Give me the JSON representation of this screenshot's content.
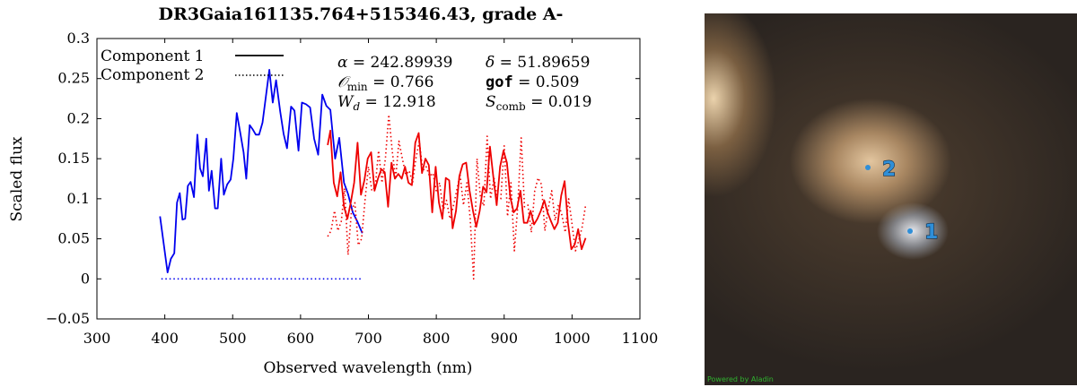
{
  "chart_data": {
    "type": "line",
    "title": "DR3Gaia161135.764+515346.43, grade A-",
    "xlabel": "Observed wavelength (nm)",
    "ylabel": "Scaled flux",
    "xlim": [
      300,
      1100
    ],
    "ylim": [
      -0.05,
      0.3
    ],
    "x_ticks": [
      "300",
      "400",
      "500",
      "600",
      "700",
      "800",
      "900",
      "1000",
      "1100"
    ],
    "y_ticks": [
      "−0.05",
      "0",
      "0.05",
      "0.1",
      "0.15",
      "0.2",
      "0.25",
      "0.3"
    ],
    "legend": {
      "placement": "top-left",
      "entries": [
        "Component 1",
        "Component 2"
      ]
    },
    "annotations": {
      "alpha": {
        "symbol": "α",
        "value": "= 242.89939"
      },
      "delta": {
        "symbol": "δ",
        "value": "= 51.89659"
      },
      "omin": {
        "symbol": "𝒪",
        "sub": "min",
        "value": "= 0.766"
      },
      "gof": {
        "symbol": "gof",
        "value": "= 0.509"
      },
      "wd": {
        "symbol": "W",
        "sub": "d",
        "value": "= 12.918"
      },
      "scomb": {
        "symbol": "S",
        "sub": "comb",
        "value": "= 0.019"
      }
    },
    "series": [
      {
        "name": "Component 1",
        "style": "solid",
        "color": "#0000ee",
        "x": [
          393,
          404,
          409,
          414,
          418,
          422,
          426,
          430,
          434,
          438,
          443,
          448,
          452,
          456,
          461,
          465,
          469,
          474,
          478,
          483,
          487,
          492,
          497,
          501,
          506,
          511,
          516,
          520,
          525,
          530,
          534,
          539,
          544,
          549,
          554,
          559,
          564,
          570,
          575,
          580,
          586,
          591,
          597,
          602,
          608,
          614,
          620,
          626,
          632,
          638,
          644,
          651,
          657,
          664,
          670,
          677,
          684,
          691
        ],
        "y": [
          0.078,
          0.008,
          0.025,
          0.032,
          0.095,
          0.107,
          0.074,
          0.075,
          0.116,
          0.121,
          0.102,
          0.18,
          0.138,
          0.128,
          0.175,
          0.11,
          0.135,
          0.088,
          0.088,
          0.15,
          0.105,
          0.118,
          0.124,
          0.15,
          0.207,
          0.183,
          0.158,
          0.125,
          0.192,
          0.186,
          0.18,
          0.18,
          0.195,
          0.228,
          0.261,
          0.22,
          0.248,
          0.209,
          0.181,
          0.163,
          0.215,
          0.21,
          0.16,
          0.22,
          0.218,
          0.214,
          0.175,
          0.155,
          0.23,
          0.216,
          0.211,
          0.15,
          0.176,
          0.12,
          0.106,
          0.083,
          0.071,
          0.057
        ]
      },
      {
        "name": "Component 1 (red part)",
        "style": "solid",
        "color": "#ee0000",
        "x": [
          640,
          644,
          649,
          654,
          659,
          664,
          669,
          674,
          679,
          684,
          689,
          694,
          699,
          704,
          709,
          714,
          719,
          724,
          729,
          734,
          739,
          744,
          749,
          754,
          759,
          764,
          769,
          774,
          779,
          784,
          789,
          794,
          799,
          804,
          809,
          814,
          819,
          824,
          829,
          834,
          839,
          844,
          849,
          854,
          859,
          864,
          869,
          874,
          879,
          884,
          889,
          894,
          899,
          904,
          909,
          914,
          919,
          924,
          929,
          934,
          939,
          944,
          949,
          954,
          959,
          964,
          969,
          974,
          979,
          984,
          989,
          994,
          999,
          1004,
          1009,
          1014,
          1020
        ],
        "y": [
          0.167,
          0.185,
          0.12,
          0.103,
          0.133,
          0.09,
          0.075,
          0.095,
          0.12,
          0.17,
          0.105,
          0.123,
          0.15,
          0.158,
          0.11,
          0.125,
          0.137,
          0.133,
          0.09,
          0.145,
          0.125,
          0.131,
          0.125,
          0.14,
          0.12,
          0.117,
          0.17,
          0.182,
          0.132,
          0.15,
          0.142,
          0.083,
          0.14,
          0.095,
          0.075,
          0.126,
          0.123,
          0.063,
          0.085,
          0.128,
          0.143,
          0.145,
          0.11,
          0.085,
          0.065,
          0.085,
          0.115,
          0.108,
          0.165,
          0.128,
          0.092,
          0.14,
          0.16,
          0.145,
          0.102,
          0.083,
          0.088,
          0.11,
          0.07,
          0.07,
          0.085,
          0.068,
          0.075,
          0.085,
          0.098,
          0.083,
          0.072,
          0.062,
          0.07,
          0.104,
          0.122,
          0.07,
          0.037,
          0.043,
          0.062,
          0.037,
          0.051
        ]
      },
      {
        "name": "Component 2 (blue part)",
        "style": "dotted",
        "color": "#0000ee",
        "x": [
          395,
          690
        ],
        "y": [
          0.0,
          0.0
        ]
      },
      {
        "name": "Component 2",
        "style": "dotted",
        "color": "#ee0000",
        "x": [
          640,
          645,
          650,
          655,
          660,
          665,
          670,
          675,
          680,
          685,
          690,
          695,
          700,
          705,
          710,
          715,
          720,
          725,
          730,
          735,
          740,
          745,
          750,
          755,
          760,
          765,
          770,
          775,
          780,
          785,
          790,
          795,
          800,
          805,
          810,
          815,
          820,
          825,
          830,
          835,
          840,
          845,
          850,
          855,
          860,
          865,
          870,
          875,
          880,
          885,
          890,
          895,
          900,
          905,
          910,
          915,
          920,
          925,
          930,
          935,
          940,
          945,
          950,
          955,
          960,
          965,
          970,
          975,
          980,
          985,
          990,
          995,
          1000,
          1005,
          1010,
          1015,
          1020
        ],
        "y": [
          0.053,
          0.06,
          0.085,
          0.06,
          0.072,
          0.113,
          0.03,
          0.085,
          0.095,
          0.042,
          0.05,
          0.098,
          0.14,
          0.11,
          0.115,
          0.16,
          0.12,
          0.15,
          0.205,
          0.16,
          0.125,
          0.172,
          0.15,
          0.13,
          0.135,
          0.12,
          0.15,
          0.172,
          0.135,
          0.14,
          0.128,
          0.132,
          0.11,
          0.12,
          0.085,
          0.098,
          0.075,
          0.09,
          0.11,
          0.13,
          0.092,
          0.12,
          0.075,
          0.0,
          0.15,
          0.102,
          0.091,
          0.178,
          0.1,
          0.126,
          0.1,
          0.1,
          0.166,
          0.078,
          0.12,
          0.035,
          0.091,
          0.176,
          0.09,
          0.092,
          0.058,
          0.11,
          0.126,
          0.118,
          0.06,
          0.088,
          0.11,
          0.073,
          0.093,
          0.08,
          0.058,
          0.1,
          0.068,
          0.035,
          0.048,
          0.065,
          0.092
        ]
      }
    ]
  },
  "image_panel": {
    "markers": [
      {
        "label": "1",
        "color": "#2f8fd8"
      },
      {
        "label": "2",
        "color": "#2f8fd8"
      }
    ],
    "credit": "Powered by Aladin"
  }
}
